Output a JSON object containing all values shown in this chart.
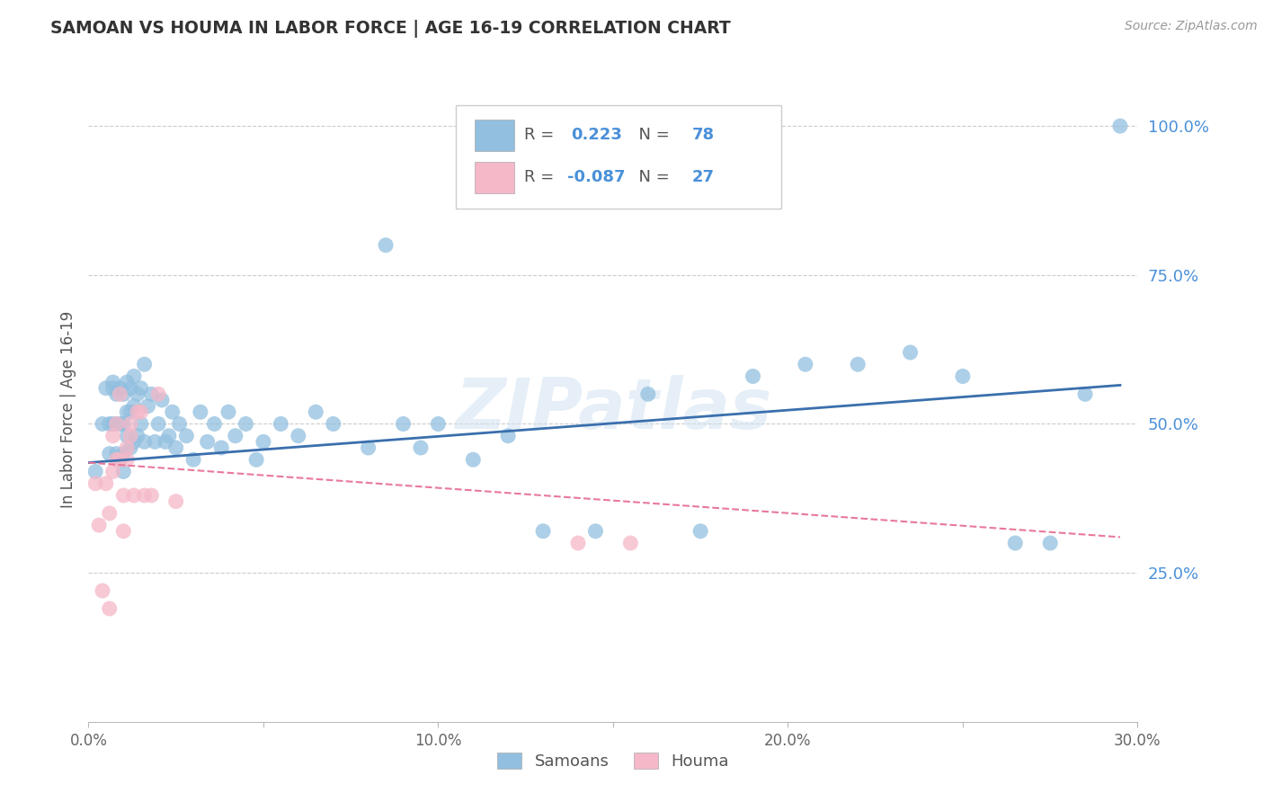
{
  "title": "SAMOAN VS HOUMA IN LABOR FORCE | AGE 16-19 CORRELATION CHART",
  "source": "Source: ZipAtlas.com",
  "ylabel": "In Labor Force | Age 16-19",
  "xlim": [
    0.0,
    0.3
  ],
  "ylim": [
    0.0,
    1.05
  ],
  "xtick_labels": [
    "0.0%",
    "",
    "10.0%",
    "",
    "20.0%",
    "",
    "30.0%"
  ],
  "xtick_vals": [
    0.0,
    0.05,
    0.1,
    0.15,
    0.2,
    0.25,
    0.3
  ],
  "ytick_labels": [
    "25.0%",
    "50.0%",
    "75.0%",
    "100.0%"
  ],
  "ytick_vals": [
    0.25,
    0.5,
    0.75,
    1.0
  ],
  "blue_R": "0.223",
  "blue_N": "78",
  "pink_R": "-0.087",
  "pink_N": "27",
  "blue_color": "#92bfdf",
  "pink_color": "#f5b8c8",
  "blue_line_color": "#3a6fad",
  "pink_line_color": "#e8799a",
  "watermark": "ZIPatlas",
  "blue_scatter_x": [
    0.002,
    0.004,
    0.005,
    0.006,
    0.006,
    0.007,
    0.007,
    0.007,
    0.008,
    0.008,
    0.008,
    0.009,
    0.009,
    0.009,
    0.01,
    0.01,
    0.01,
    0.01,
    0.011,
    0.011,
    0.011,
    0.012,
    0.012,
    0.012,
    0.013,
    0.013,
    0.013,
    0.014,
    0.014,
    0.015,
    0.015,
    0.016,
    0.016,
    0.017,
    0.018,
    0.019,
    0.02,
    0.021,
    0.022,
    0.023,
    0.024,
    0.025,
    0.026,
    0.028,
    0.03,
    0.032,
    0.034,
    0.036,
    0.038,
    0.04,
    0.042,
    0.045,
    0.048,
    0.05,
    0.055,
    0.06,
    0.065,
    0.07,
    0.08,
    0.085,
    0.09,
    0.095,
    0.1,
    0.11,
    0.12,
    0.13,
    0.145,
    0.16,
    0.175,
    0.19,
    0.205,
    0.22,
    0.235,
    0.25,
    0.265,
    0.275,
    0.285,
    0.295
  ],
  "blue_scatter_y": [
    0.42,
    0.5,
    0.56,
    0.45,
    0.5,
    0.57,
    0.5,
    0.56,
    0.45,
    0.5,
    0.55,
    0.44,
    0.5,
    0.56,
    0.45,
    0.5,
    0.55,
    0.42,
    0.48,
    0.52,
    0.57,
    0.46,
    0.52,
    0.56,
    0.47,
    0.53,
    0.58,
    0.48,
    0.55,
    0.5,
    0.56,
    0.47,
    0.6,
    0.53,
    0.55,
    0.47,
    0.5,
    0.54,
    0.47,
    0.48,
    0.52,
    0.46,
    0.5,
    0.48,
    0.44,
    0.52,
    0.47,
    0.5,
    0.46,
    0.52,
    0.48,
    0.5,
    0.44,
    0.47,
    0.5,
    0.48,
    0.52,
    0.5,
    0.46,
    0.8,
    0.5,
    0.46,
    0.5,
    0.44,
    0.48,
    0.32,
    0.32,
    0.55,
    0.32,
    0.58,
    0.6,
    0.6,
    0.62,
    0.58,
    0.3,
    0.3,
    0.55,
    1.0
  ],
  "pink_scatter_x": [
    0.002,
    0.003,
    0.004,
    0.005,
    0.006,
    0.006,
    0.007,
    0.007,
    0.008,
    0.008,
    0.009,
    0.009,
    0.01,
    0.01,
    0.011,
    0.011,
    0.012,
    0.012,
    0.013,
    0.014,
    0.015,
    0.016,
    0.018,
    0.02,
    0.025,
    0.14,
    0.155
  ],
  "pink_scatter_y": [
    0.4,
    0.33,
    0.22,
    0.4,
    0.19,
    0.35,
    0.48,
    0.42,
    0.44,
    0.5,
    0.44,
    0.55,
    0.38,
    0.32,
    0.46,
    0.44,
    0.5,
    0.48,
    0.38,
    0.52,
    0.52,
    0.38,
    0.38,
    0.55,
    0.37,
    0.3,
    0.3
  ],
  "blue_line_x0": 0.0,
  "blue_line_x1": 0.295,
  "blue_line_y0": 0.435,
  "blue_line_y1": 0.565,
  "pink_line_x0": 0.0,
  "pink_line_x1": 0.295,
  "pink_line_y0": 0.435,
  "pink_line_y1": 0.31
}
